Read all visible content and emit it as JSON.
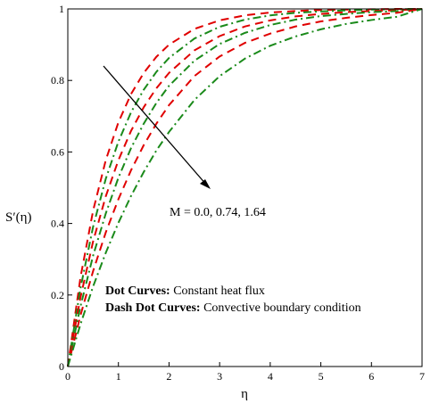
{
  "chart_data": {
    "type": "line",
    "xlabel": "η",
    "ylabel": "S′(η)",
    "xlim": [
      0,
      7
    ],
    "ylim": [
      0,
      1
    ],
    "x_ticks": [
      "0",
      "1",
      "2",
      "3",
      "4",
      "5",
      "6",
      "7"
    ],
    "y_ticks": [
      "0",
      "0.2",
      "0.4",
      "0.6",
      "0.8",
      "1"
    ],
    "grid": false,
    "annotation": "M = 0.0, 0.74, 1.64",
    "legend": [
      {
        "bold": "Dot Curves:",
        "text": " Constant heat flux"
      },
      {
        "bold": "Dash Dot Curves:",
        "text": " Convective boundary condition"
      }
    ],
    "series": [
      {
        "color": "#e00000",
        "dash": "dash",
        "x": [
          0,
          0.25,
          0.5,
          0.75,
          1,
          1.25,
          1.5,
          1.75,
          2,
          2.5,
          3,
          3.5,
          4,
          4.5,
          5,
          5.5,
          6,
          6.5,
          7
        ],
        "y": [
          0,
          0.249,
          0.436,
          0.577,
          0.683,
          0.762,
          0.821,
          0.866,
          0.9,
          0.944,
          0.968,
          0.982,
          0.99,
          0.994,
          0.997,
          0.998,
          0.999,
          1,
          1
        ]
      },
      {
        "color": "#1a8a1a",
        "dash": "dashdot",
        "x": [
          0,
          0.25,
          0.5,
          0.75,
          1,
          1.25,
          1.5,
          1.75,
          2,
          2.5,
          3,
          3.5,
          4,
          4.5,
          5,
          5.5,
          6,
          6.5,
          7
        ],
        "y": [
          0,
          0.219,
          0.391,
          0.525,
          0.629,
          0.711,
          0.774,
          0.824,
          0.863,
          0.917,
          0.95,
          0.97,
          0.982,
          0.989,
          0.993,
          0.996,
          0.998,
          0.999,
          1
        ]
      },
      {
        "color": "#e00000",
        "dash": "dash",
        "x": [
          0,
          0.25,
          0.5,
          0.75,
          1,
          1.25,
          1.5,
          1.75,
          2,
          2.5,
          3,
          3.5,
          4,
          4.5,
          5,
          5.5,
          6,
          6.5,
          7
        ],
        "y": [
          0,
          0.193,
          0.35,
          0.476,
          0.577,
          0.659,
          0.725,
          0.778,
          0.821,
          0.884,
          0.924,
          0.951,
          0.968,
          0.979,
          0.986,
          0.991,
          0.994,
          0.996,
          1
        ]
      },
      {
        "color": "#1a8a1a",
        "dash": "dashdot",
        "x": [
          0,
          0.25,
          0.5,
          0.75,
          1,
          1.25,
          1.5,
          1.75,
          2,
          2.5,
          3,
          3.5,
          4,
          4.5,
          5,
          5.5,
          6,
          6.5,
          7
        ],
        "y": [
          0,
          0.168,
          0.31,
          0.428,
          0.528,
          0.611,
          0.679,
          0.737,
          0.785,
          0.855,
          0.902,
          0.933,
          0.955,
          0.97,
          0.98,
          0.986,
          0.991,
          0.994,
          1
        ]
      },
      {
        "color": "#e00000",
        "dash": "dash",
        "x": [
          0,
          0.25,
          0.5,
          0.75,
          1,
          1.25,
          1.5,
          1.75,
          2,
          2.5,
          3,
          3.5,
          4,
          4.5,
          5,
          5.5,
          6,
          6.5,
          7
        ],
        "y": [
          0,
          0.143,
          0.267,
          0.375,
          0.468,
          0.549,
          0.619,
          0.679,
          0.731,
          0.812,
          0.867,
          0.905,
          0.931,
          0.951,
          0.965,
          0.975,
          0.983,
          0.989,
          1
        ]
      },
      {
        "color": "#1a8a1a",
        "dash": "dashdot",
        "x": [
          0,
          0.25,
          0.5,
          0.75,
          1,
          1.25,
          1.5,
          1.75,
          2,
          2.5,
          3,
          3.5,
          4,
          4.5,
          5,
          5.5,
          6,
          6.5,
          7
        ],
        "y": [
          0,
          0.118,
          0.224,
          0.318,
          0.402,
          0.477,
          0.544,
          0.604,
          0.656,
          0.745,
          0.812,
          0.861,
          0.897,
          0.923,
          0.943,
          0.958,
          0.969,
          0.978,
          1
        ]
      }
    ]
  }
}
